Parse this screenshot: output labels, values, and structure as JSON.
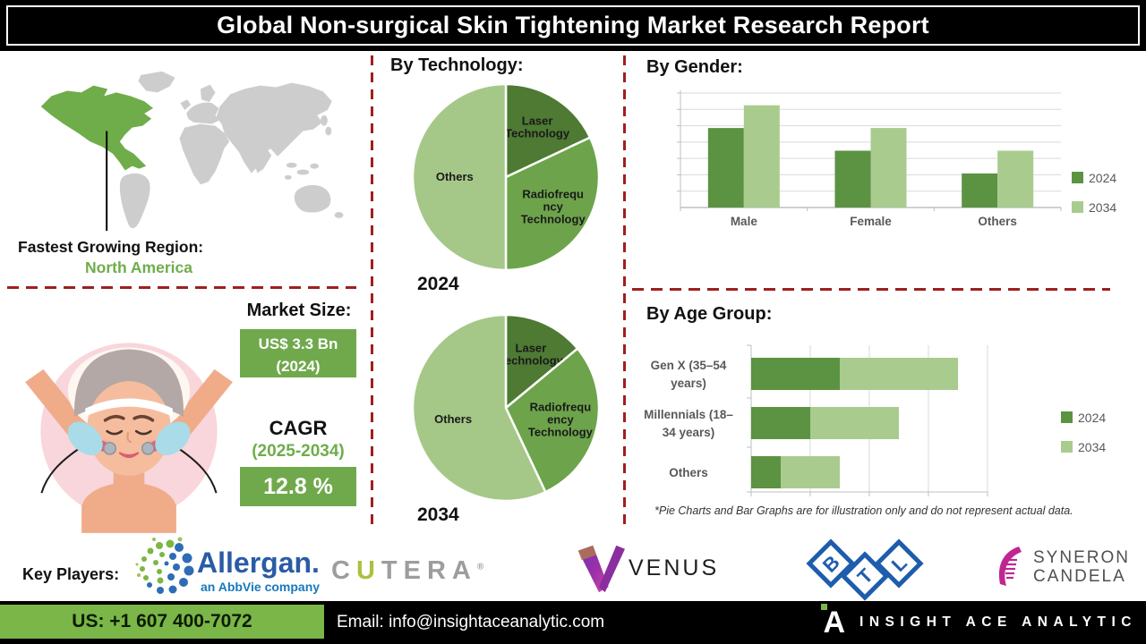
{
  "header": {
    "title": "Global Non-surgical Skin Tightening Market Research Report"
  },
  "left_panel": {
    "region_label": "Fastest Growing Region:",
    "region_value": "North America",
    "market_size_label": "Market Size:",
    "market_size_value": "US$ 3.3 Bn",
    "market_size_year": "(2024)",
    "cagr_label": "CAGR",
    "cagr_period": "(2025-2034)",
    "cagr_value": "12.8 %"
  },
  "sections": {
    "technology_title": "By Technology:",
    "gender_title": "By Gender:",
    "age_title": "By Age Group:",
    "disclaimer": "*Pie Charts and Bar Graphs are for illustration only and do not represent actual data."
  },
  "key_players": {
    "label": "Key Players:",
    "allergan_name": "Allergan.",
    "allergan_subtitle": "an AbbVie company",
    "cutera_pre": "C",
    "cutera_u": "U",
    "cutera_post": "TERA",
    "cutera_reg": "®",
    "venus_name": "VENUS",
    "btl_letters": [
      "B",
      "T",
      "L"
    ],
    "syneron_line1": "SYNERON",
    "syneron_line2": "CANDELA"
  },
  "footer": {
    "phone": "US: +1 607 400-7072",
    "email": "Email: info@insightaceanalytic.com",
    "brand": "INSIGHT ACE ANALYTIC",
    "logo_letter": "A"
  },
  "colors": {
    "dark_green": "#4e7a33",
    "mid_green": "#6da44b",
    "light_green": "#a9cb8e",
    "bar_green_2024": "#5b9342",
    "box_green": "#70a94c",
    "footer_green": "#7ab648",
    "dashed_red": "#9e1f1f",
    "map_green": "#6fad4b",
    "map_gray": "#cdcdcd",
    "legend_text": "#595959"
  },
  "chart_data": [
    {
      "type": "pie",
      "title": "By Technology:",
      "year": "2024",
      "labels": [
        "Laser Technology",
        "Radiofrequency Technology",
        "Others"
      ],
      "label_lines": [
        [
          "Laser",
          "Technology"
        ],
        [
          "Radiofrequ",
          "ncy",
          "Technology"
        ],
        [
          "Others"
        ]
      ],
      "values": [
        18,
        32,
        50
      ],
      "unit": "percent",
      "colors": [
        "#4e7a33",
        "#6da44b",
        "#a5c888"
      ],
      "label_r": [
        0.63,
        0.6,
        0.55
      ],
      "note": "illustrative only"
    },
    {
      "type": "pie",
      "title": "By Technology:",
      "year": "2034",
      "labels": [
        "Laser Technology",
        "Radiofrequency Technology",
        "Others"
      ],
      "label_lines": [
        [
          "Laser",
          "Technology"
        ],
        [
          "Radiofrequ",
          "ency",
          "Technology"
        ],
        [
          "Others"
        ]
      ],
      "values": [
        14,
        29,
        57
      ],
      "unit": "percent",
      "colors": [
        "#4e7a33",
        "#6da44b",
        "#a5c888"
      ],
      "label_r": [
        0.63,
        0.6,
        0.58
      ],
      "note": "illustrative only"
    },
    {
      "type": "bar",
      "title": "By Gender:",
      "categories": [
        "Male",
        "Female",
        "Others"
      ],
      "series": [
        {
          "name": "2024",
          "color": "#5b9342",
          "values": [
            3.5,
            2.5,
            1.5
          ]
        },
        {
          "name": "2034",
          "color": "#a9cb8e",
          "values": [
            4.5,
            3.5,
            2.5
          ]
        }
      ],
      "ylim": [
        0,
        5
      ],
      "gridlines": 7,
      "grid": true,
      "legend_position": "right",
      "note": "illustrative only, no value axis labels shown"
    },
    {
      "type": "bar",
      "orientation": "horizontal",
      "stacked": true,
      "title": "By Age Group:",
      "categories": [
        "Gen X (35–54 years)",
        "Millennials (18–34 years)",
        "Others"
      ],
      "category_lines": [
        [
          "Gen X (35–54",
          "years)"
        ],
        [
          "Millennials (18–",
          "34 years)"
        ],
        [
          "Others"
        ]
      ],
      "series": [
        {
          "name": "2024",
          "color": "#5b9342",
          "values": [
            1.5,
            1.0,
            0.5
          ]
        },
        {
          "name": "2034",
          "color": "#a9cb8e",
          "values": [
            2.0,
            1.5,
            1.0
          ]
        }
      ],
      "xlim": [
        0,
        4
      ],
      "gridline_step": 1,
      "grid": true,
      "legend_position": "right",
      "note": "illustrative only, no value axis labels shown"
    }
  ]
}
